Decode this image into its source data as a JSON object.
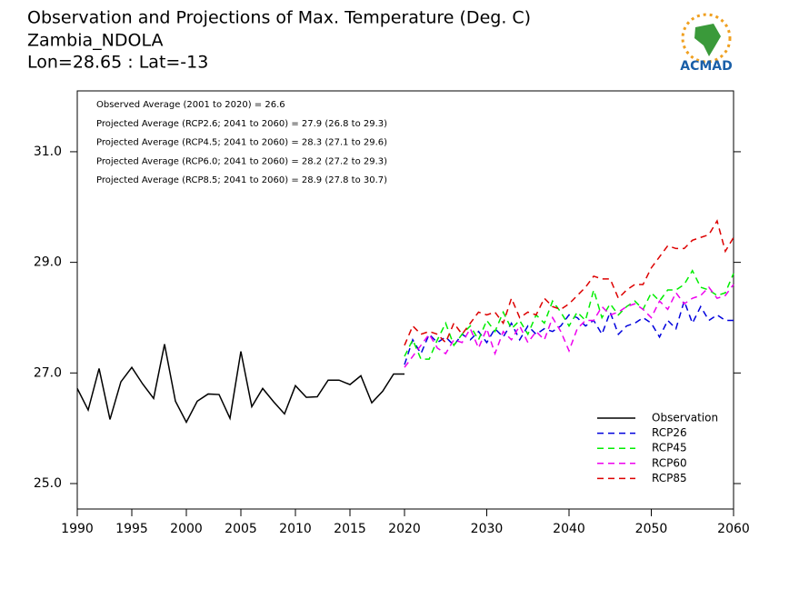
{
  "chart_data": [
    {
      "type": "line",
      "title": [
        "Observation and Projections of Max. Temperature (Deg. C)",
        "Zambia_NDOLA",
        "Lon=28.65 : Lat=-13"
      ],
      "logo": "ACMAD",
      "annotations": [
        "Observed Average (2001 to 2020) = 26.6",
        "Projected Average (RCP2.6; 2041 to 2060) = 27.9 (26.8 to 29.3)",
        "Projected Average (RCP4.5; 2041 to 2060) = 28.3 (27.1 to 29.6)",
        "Projected Average (RCP6.0; 2041 to 2060) = 28.2 (27.2 to 29.3)",
        "Projected Average (RCP8.5; 2041 to 2060) = 28.9 (27.8 to 30.7)"
      ],
      "x": [
        1990,
        1991,
        1992,
        1993,
        1994,
        1995,
        1996,
        1997,
        1998,
        1999,
        2000,
        2001,
        2002,
        2003,
        2004,
        2005,
        2006,
        2007,
        2008,
        2009,
        2010,
        2011,
        2012,
        2013,
        2014,
        2015,
        2016,
        2017,
        2018,
        2019,
        2020
      ],
      "xlim": [
        1990,
        2020
      ],
      "xticks": [
        1990,
        1995,
        2000,
        2005,
        2010,
        2015
      ],
      "ylim": [
        24.54,
        32.1
      ],
      "yticks": [
        {
          "value": 25,
          "label": "25.0"
        },
        {
          "value": 27,
          "label": "27.0"
        },
        {
          "value": 29,
          "label": "29.0"
        },
        {
          "value": 31,
          "label": "31.0"
        }
      ],
      "series": [
        {
          "name": "Observation",
          "color": "#000000",
          "dashed": false,
          "values": [
            26.72,
            26.33,
            27.08,
            26.16,
            26.84,
            27.1,
            26.8,
            26.54,
            27.52,
            26.49,
            26.11,
            26.49,
            26.62,
            26.61,
            26.18,
            27.39,
            26.39,
            26.72,
            26.48,
            26.26,
            26.77,
            26.56,
            26.57,
            26.87,
            26.87,
            26.79,
            26.95,
            26.46,
            26.67,
            26.98,
            26.98
          ]
        }
      ]
    },
    {
      "type": "line",
      "x": [
        2020,
        2021,
        2022,
        2023,
        2024,
        2025,
        2026,
        2027,
        2028,
        2029,
        2030,
        2031,
        2032,
        2033,
        2034,
        2035,
        2036,
        2037,
        2038,
        2039,
        2040,
        2041,
        2042,
        2043,
        2044,
        2045,
        2046,
        2047,
        2048,
        2049,
        2050,
        2051,
        2052,
        2053,
        2054,
        2055,
        2056,
        2057,
        2058,
        2059,
        2060
      ],
      "xlim": [
        2020,
        2060
      ],
      "xticks": [
        2020,
        2030,
        2040,
        2050,
        2060
      ],
      "ylim": [
        24.54,
        32.1
      ],
      "legend": "lower right",
      "series": [
        {
          "name": "RCP26",
          "color": "#0000dd",
          "dashed": true,
          "values": [
            27.15,
            27.6,
            27.35,
            27.7,
            27.55,
            27.65,
            27.5,
            27.7,
            27.6,
            27.75,
            27.55,
            27.8,
            27.65,
            27.9,
            27.6,
            27.85,
            27.7,
            27.8,
            27.75,
            27.85,
            28.05,
            28.0,
            27.85,
            27.95,
            27.7,
            28.1,
            27.7,
            27.85,
            27.9,
            28.0,
            27.9,
            27.65,
            27.95,
            27.8,
            28.3,
            27.9,
            28.2,
            27.95,
            28.05,
            27.95,
            27.95
          ]
        },
        {
          "name": "RCP45",
          "color": "#00ee00",
          "dashed": true,
          "values": [
            27.3,
            27.6,
            27.25,
            27.25,
            27.6,
            27.9,
            27.5,
            27.7,
            27.85,
            27.6,
            27.95,
            27.75,
            28.1,
            27.8,
            27.95,
            27.7,
            28.05,
            27.9,
            28.3,
            28.1,
            27.85,
            28.1,
            27.95,
            28.5,
            28.0,
            28.25,
            28.05,
            28.2,
            28.3,
            28.15,
            28.45,
            28.3,
            28.5,
            28.5,
            28.6,
            28.85,
            28.55,
            28.5,
            28.4,
            28.45,
            28.8
          ]
        },
        {
          "name": "RCP60",
          "color": "#ee00ee",
          "dashed": true,
          "values": [
            27.1,
            27.3,
            27.5,
            27.7,
            27.45,
            27.35,
            27.6,
            27.55,
            27.8,
            27.45,
            27.8,
            27.35,
            27.75,
            27.6,
            27.85,
            27.55,
            27.75,
            27.6,
            28.0,
            27.75,
            27.4,
            27.8,
            27.95,
            27.95,
            28.2,
            28.05,
            28.1,
            28.2,
            28.25,
            28.15,
            28.0,
            28.3,
            28.15,
            28.45,
            28.25,
            28.35,
            28.4,
            28.55,
            28.35,
            28.4,
            28.6
          ]
        },
        {
          "name": "RCP85",
          "color": "#dd0000",
          "dashed": true,
          "values": [
            27.5,
            27.85,
            27.7,
            27.75,
            27.7,
            27.55,
            27.9,
            27.7,
            27.9,
            28.1,
            28.05,
            28.1,
            27.9,
            28.35,
            28.0,
            28.1,
            28.05,
            28.35,
            28.2,
            28.15,
            28.25,
            28.4,
            28.55,
            28.75,
            28.7,
            28.7,
            28.35,
            28.5,
            28.6,
            28.6,
            28.9,
            29.1,
            29.3,
            29.25,
            29.25,
            29.4,
            29.45,
            29.5,
            29.75,
            29.2,
            29.45
          ]
        }
      ]
    }
  ]
}
